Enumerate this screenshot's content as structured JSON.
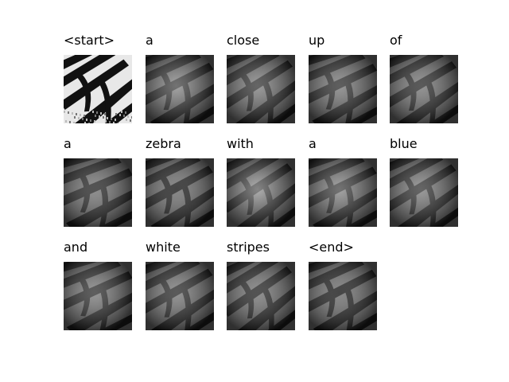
{
  "caption_tokens": [
    {
      "word": "<start>",
      "kind": "original"
    },
    {
      "word": "a",
      "kind": "attention"
    },
    {
      "word": "close",
      "kind": "attention"
    },
    {
      "word": "up",
      "kind": "attention"
    },
    {
      "word": "of",
      "kind": "attention"
    },
    {
      "word": "a",
      "kind": "attention"
    },
    {
      "word": "zebra",
      "kind": "attention"
    },
    {
      "word": "with",
      "kind": "attention"
    },
    {
      "word": "a",
      "kind": "attention"
    },
    {
      "word": "blue",
      "kind": "attention"
    },
    {
      "word": "and",
      "kind": "attention"
    },
    {
      "word": "white",
      "kind": "attention"
    },
    {
      "word": "stripes",
      "kind": "attention"
    },
    {
      "word": "<end>",
      "kind": "attention"
    }
  ]
}
